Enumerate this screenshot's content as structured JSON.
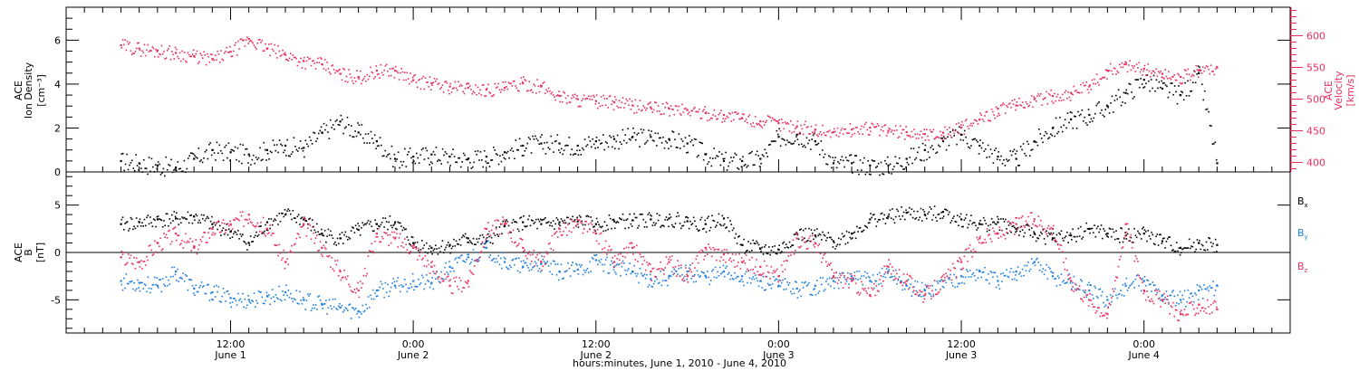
{
  "colors": {
    "density": "#000000",
    "velocity": "#e8305f",
    "bx": "#000000",
    "by": "#1f7fdc",
    "bz": "#e8305f",
    "axis": "#000000",
    "background": "#ffffff"
  },
  "chart_data": [
    {
      "type": "scatter",
      "panel": "plasma",
      "ylabel_left": [
        "ACE",
        "Ion Density",
        "[cm⁻³]"
      ],
      "ylabel_right": [
        "ACE",
        "Velocity",
        "[km/s]"
      ],
      "left_axis": {
        "ylim": [
          0,
          7.5
        ],
        "ticks": [
          0,
          2,
          4,
          6
        ],
        "tick_labels": [
          "0",
          "2",
          "4",
          "6"
        ]
      },
      "right_axis": {
        "ylim": [
          385,
          645
        ],
        "ticks": [
          400,
          450,
          500,
          550,
          600
        ],
        "tick_labels": [
          "400",
          "450",
          "500",
          "550",
          "600"
        ]
      },
      "series": [
        {
          "key": "density",
          "axis": "left",
          "color_key": "density",
          "x": [
            0,
            2,
            4,
            6,
            8,
            10,
            12,
            14,
            16,
            18,
            20,
            22,
            24,
            26,
            28,
            30,
            32,
            34,
            36,
            38,
            40,
            42,
            44,
            46,
            48,
            50,
            52,
            54,
            56,
            58,
            60,
            62,
            64,
            66,
            68,
            70,
            72,
            74,
            76,
            78,
            80,
            82,
            84,
            86,
            88,
            90,
            92,
            94,
            96,
            98,
            100,
            102,
            104,
            106,
            108,
            110,
            112,
            114,
            116,
            118,
            120
          ],
          "values": [
            0.5,
            0.4,
            0.3,
            0.2,
            0.6,
            1.0,
            0.9,
            0.8,
            1.0,
            1.2,
            1.1,
            1.8,
            2.3,
            1.8,
            1.4,
            0.6,
            0.7,
            0.8,
            0.7,
            0.6,
            0.7,
            0.9,
            1.2,
            1.3,
            1.3,
            1.2,
            1.4,
            1.5,
            1.6,
            1.6,
            1.5,
            1.3,
            0.8,
            0.5,
            0.5,
            0.6,
            1.6,
            1.7,
            1.4,
            0.4,
            0.4,
            0.3,
            0.3,
            0.6,
            1.0,
            1.4,
            1.7,
            1.2,
            0.7,
            0.6,
            1.4,
            2.0,
            2.4,
            2.6,
            3.0,
            3.6,
            4.2,
            3.8,
            3.5,
            4.5,
            0.4
          ]
        },
        {
          "key": "velocity",
          "axis": "right",
          "color_key": "velocity",
          "x": [
            0,
            2,
            4,
            6,
            8,
            10,
            12,
            14,
            16,
            18,
            20,
            22,
            24,
            26,
            28,
            30,
            32,
            34,
            36,
            38,
            40,
            42,
            44,
            46,
            48,
            50,
            52,
            54,
            56,
            58,
            60,
            62,
            64,
            66,
            68,
            70,
            72,
            74,
            76,
            78,
            80,
            82,
            84,
            86,
            88,
            90,
            92,
            94,
            96,
            98,
            100,
            102,
            104,
            106,
            108,
            110,
            112,
            114,
            116,
            118,
            120
          ],
          "values": [
            585,
            580,
            577,
            573,
            568,
            563,
            575,
            595,
            580,
            570,
            560,
            555,
            540,
            535,
            545,
            545,
            530,
            525,
            520,
            518,
            515,
            518,
            525,
            520,
            505,
            500,
            497,
            495,
            490,
            487,
            485,
            483,
            478,
            475,
            470,
            465,
            462,
            457,
            452,
            448,
            452,
            455,
            450,
            448,
            445,
            447,
            455,
            468,
            485,
            490,
            500,
            505,
            510,
            520,
            545,
            555,
            548,
            540,
            535,
            545,
            550
          ]
        }
      ]
    },
    {
      "type": "scatter",
      "panel": "magnetic",
      "ylabel_left": [
        "ACE",
        "B",
        "[nT]"
      ],
      "ylim": [
        -8.5,
        8.5
      ],
      "ticks": [
        -5,
        0,
        5
      ],
      "tick_labels": [
        "-5",
        "0",
        "5"
      ],
      "zero_line": true,
      "legend_position": "right",
      "series": [
        {
          "key": "bx",
          "name_main": "B",
          "name_sub": "x",
          "color_key": "bx",
          "x": [
            0,
            2,
            4,
            6,
            8,
            10,
            12,
            14,
            16,
            18,
            20,
            22,
            24,
            26,
            28,
            30,
            32,
            34,
            36,
            38,
            40,
            42,
            44,
            46,
            48,
            50,
            52,
            54,
            56,
            58,
            60,
            62,
            64,
            66,
            68,
            70,
            72,
            74,
            76,
            78,
            80,
            82,
            84,
            86,
            88,
            90,
            92,
            94,
            96,
            98,
            100,
            102,
            104,
            106,
            108,
            110,
            112,
            114,
            116,
            118,
            120
          ],
          "values": [
            3.0,
            3.2,
            3.5,
            3.6,
            3.8,
            3.0,
            2.2,
            1.0,
            3.2,
            4.0,
            3.5,
            2.0,
            1.5,
            2.4,
            3.0,
            3.2,
            1.0,
            0.5,
            0.8,
            1.5,
            1.2,
            2.8,
            3.2,
            3.0,
            3.2,
            3.3,
            3.0,
            3.3,
            3.4,
            3.5,
            3.6,
            3.3,
            3.0,
            3.6,
            0.8,
            0.4,
            0.3,
            2.0,
            1.8,
            1.2,
            2.0,
            3.5,
            3.8,
            4.2,
            4.0,
            4.3,
            3.5,
            3.0,
            3.2,
            2.5,
            2.0,
            1.5,
            1.8,
            2.5,
            2.0,
            1.8,
            2.0,
            1.2,
            0.5,
            1.0,
            0.8
          ]
        },
        {
          "key": "by",
          "name_main": "B",
          "name_sub": "y",
          "color_key": "by",
          "x": [
            0,
            2,
            4,
            6,
            8,
            10,
            12,
            14,
            16,
            18,
            20,
            22,
            24,
            26,
            28,
            30,
            32,
            34,
            36,
            38,
            40,
            42,
            44,
            46,
            48,
            50,
            52,
            54,
            56,
            58,
            60,
            62,
            64,
            66,
            68,
            70,
            72,
            74,
            76,
            78,
            80,
            82,
            84,
            86,
            88,
            90,
            92,
            94,
            96,
            98,
            100,
            102,
            104,
            106,
            108,
            110,
            112,
            114,
            116,
            118,
            120
          ],
          "values": [
            -3.0,
            -3.2,
            -3.5,
            -2.0,
            -3.8,
            -4.2,
            -4.8,
            -5.0,
            -4.6,
            -4.2,
            -5.0,
            -5.5,
            -5.8,
            -6.2,
            -4.0,
            -3.5,
            -3.0,
            -3.2,
            -1.5,
            -0.5,
            0.5,
            -1.0,
            -1.5,
            -1.2,
            -2.0,
            -1.8,
            -0.8,
            -1.5,
            -2.0,
            -2.8,
            -2.5,
            -2.0,
            -2.5,
            -2.0,
            -2.5,
            -3.0,
            -3.5,
            -3.8,
            -3.5,
            -3.0,
            -2.5,
            -3.0,
            -2.0,
            -3.5,
            -4.0,
            -3.0,
            -2.5,
            -2.0,
            -3.0,
            -2.0,
            -1.0,
            -2.5,
            -3.0,
            -4.0,
            -5.0,
            -3.5,
            -3.0,
            -4.5,
            -5.0,
            -4.0,
            -3.5
          ]
        },
        {
          "key": "bz",
          "name_main": "B",
          "name_sub": "z",
          "color_key": "bz",
          "x": [
            0,
            2,
            4,
            6,
            8,
            10,
            12,
            14,
            16,
            18,
            20,
            22,
            24,
            26,
            28,
            30,
            32,
            34,
            36,
            38,
            40,
            42,
            44,
            46,
            48,
            50,
            52,
            54,
            56,
            58,
            60,
            62,
            64,
            66,
            68,
            70,
            72,
            74,
            76,
            78,
            80,
            82,
            84,
            86,
            88,
            90,
            92,
            94,
            96,
            98,
            100,
            102,
            104,
            106,
            108,
            110,
            112,
            114,
            116,
            118,
            120
          ],
          "values": [
            -0.5,
            -1.0,
            1.0,
            2.0,
            0.5,
            2.5,
            3.0,
            4.0,
            2.5,
            -1.0,
            3.0,
            0.5,
            -2.0,
            -4.0,
            2.0,
            1.5,
            0.5,
            -1.5,
            -3.5,
            -3.0,
            2.5,
            3.0,
            0.5,
            -1.0,
            2.5,
            3.0,
            2.0,
            -1.0,
            0.5,
            -2.0,
            -1.0,
            -2.5,
            0.5,
            -0.2,
            -1.0,
            -1.5,
            -2.5,
            1.5,
            1.0,
            -2.5,
            -3.0,
            -4.5,
            -1.5,
            -3.0,
            -4.5,
            -3.0,
            -1.0,
            1.5,
            2.0,
            3.0,
            3.5,
            2.5,
            -3.0,
            -5.0,
            -6.5,
            3.0,
            -4.0,
            -5.0,
            -6.5,
            -5.5,
            -6.0
          ]
        }
      ]
    }
  ],
  "x_axis": {
    "xlim": [
      -6,
      128
    ],
    "xlabel": "hours:minutes, June  1, 2010 - June  4, 2010",
    "ticks": [
      {
        "x": 12,
        "time": "12:00",
        "date": "June 1"
      },
      {
        "x": 32,
        "time": "0:00",
        "date": "June 2"
      },
      {
        "x": 52,
        "time": "12:00",
        "date": "June 2"
      },
      {
        "x": 72,
        "time": "0:00",
        "date": "June 3"
      },
      {
        "x": 92,
        "time": "12:00",
        "date": "June 3"
      },
      {
        "x": 112,
        "time": "0:00",
        "date": "June 4"
      }
    ]
  }
}
